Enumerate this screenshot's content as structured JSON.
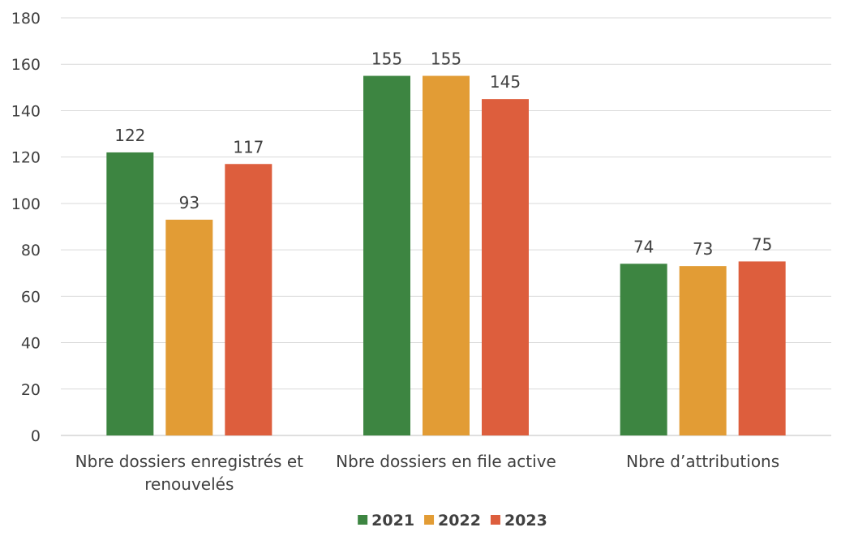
{
  "chart_data": {
    "type": "bar",
    "title": "",
    "xlabel": "",
    "ylabel": "",
    "ylim": [
      0,
      180
    ],
    "yticks": [
      0,
      20,
      40,
      60,
      80,
      100,
      120,
      140,
      160,
      180
    ],
    "grid": true,
    "legend_position": "bottom",
    "categories": [
      [
        "Nbre dossiers enregistrés et",
        "renouvelés"
      ],
      [
        "Nbre dossiers en file active"
      ],
      [
        "Nbre d’attributions"
      ]
    ],
    "series": [
      {
        "name": "2021",
        "color": "#3d8541",
        "values": [
          122,
          155,
          74
        ]
      },
      {
        "name": "2022",
        "color": "#e29c35",
        "values": [
          93,
          155,
          73
        ]
      },
      {
        "name": "2023",
        "color": "#dd5e3d",
        "values": [
          117,
          145,
          75
        ]
      }
    ]
  }
}
